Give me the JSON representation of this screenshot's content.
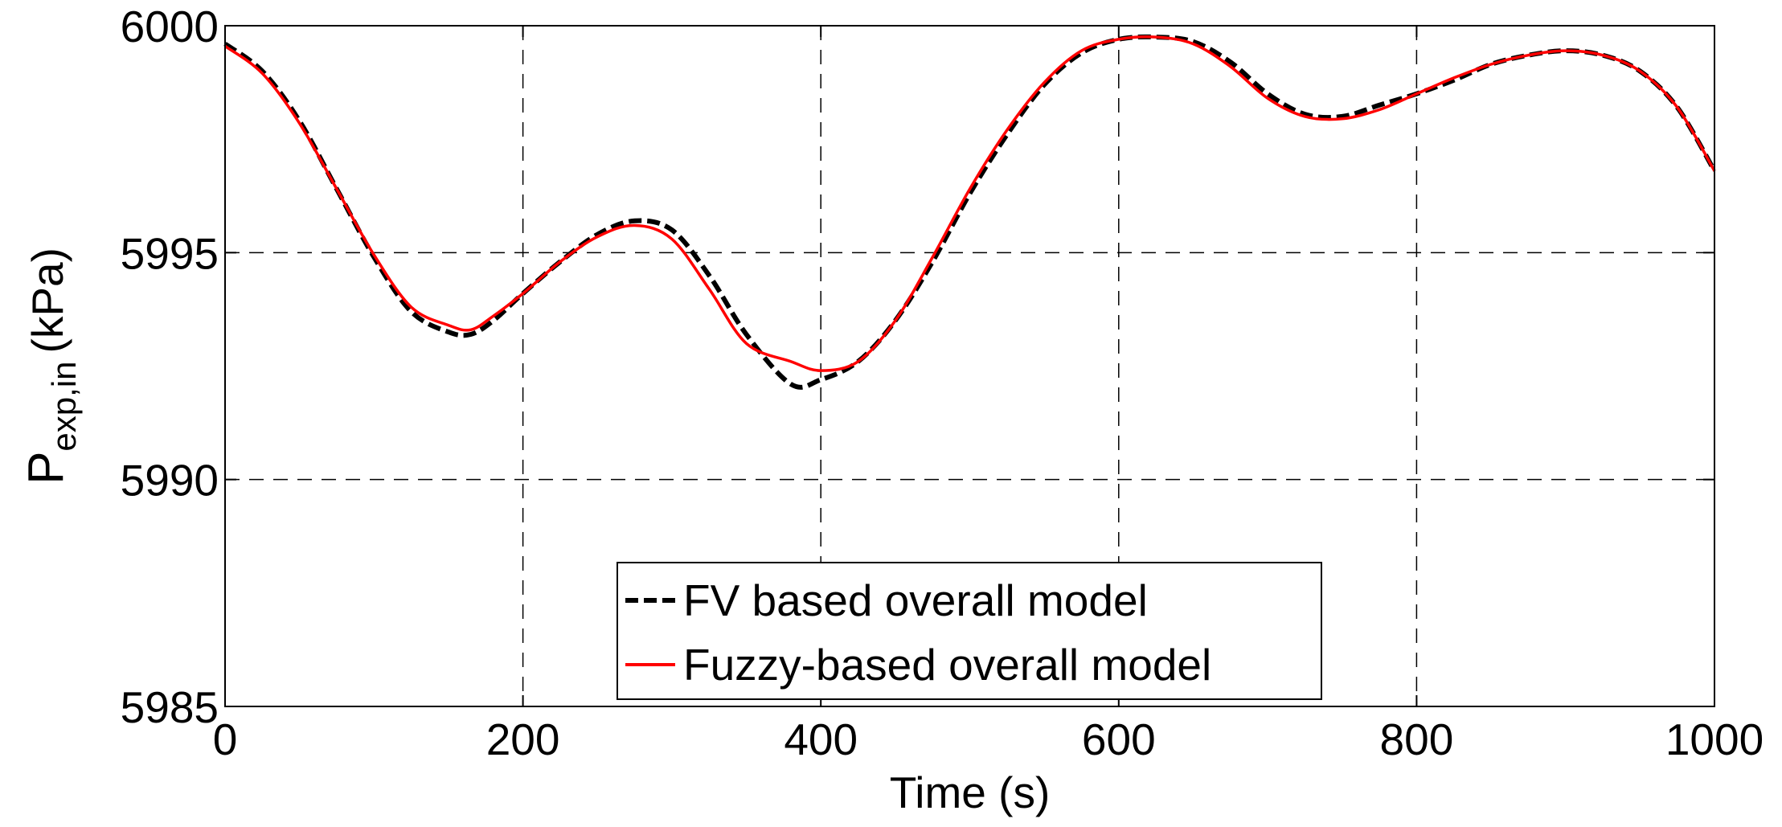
{
  "chart_data": {
    "type": "line",
    "title": "",
    "xlabel": "Time (s)",
    "ylabel": {
      "main": "P",
      "subscript": "exp,in",
      "unit": "(kPa)"
    },
    "xlim": [
      0,
      1000
    ],
    "ylim": [
      5985,
      6000
    ],
    "xticks": [
      0,
      200,
      400,
      600,
      800,
      1000
    ],
    "yticks": [
      5985,
      5990,
      5995,
      6000
    ],
    "grid": true,
    "legend_position": "bottom-center",
    "colors": {
      "fv": "#000000",
      "fuzzy": "#ff0000",
      "grid": "#000000"
    },
    "series": [
      {
        "name": "FV based overall model",
        "style": "dashed",
        "x": [
          0,
          25,
          50,
          75,
          100,
          125,
          150,
          165,
          180,
          200,
          225,
          250,
          275,
          300,
          325,
          350,
          380,
          400,
          425,
          450,
          475,
          500,
          525,
          550,
          575,
          600,
          625,
          650,
          675,
          700,
          725,
          750,
          775,
          800,
          825,
          850,
          875,
          900,
          925,
          950,
          975,
          1000
        ],
        "values": [
          5999.6,
          5999.0,
          5997.9,
          5996.4,
          5994.9,
          5993.7,
          5993.25,
          5993.2,
          5993.5,
          5994.1,
          5994.8,
          5995.4,
          5995.7,
          5995.5,
          5994.5,
          5993.2,
          5992.1,
          5992.2,
          5992.6,
          5993.5,
          5994.8,
          5996.3,
          5997.6,
          5998.7,
          5999.4,
          5999.7,
          5999.75,
          5999.65,
          5999.2,
          5998.5,
          5998.05,
          5998.0,
          5998.25,
          5998.5,
          5998.8,
          5999.15,
          5999.35,
          5999.45,
          5999.35,
          5999.0,
          5998.2,
          5996.8
        ]
      },
      {
        "name": "Fuzzy-based overall model",
        "style": "solid",
        "x": [
          0,
          25,
          50,
          75,
          100,
          125,
          150,
          165,
          180,
          200,
          225,
          250,
          275,
          300,
          325,
          350,
          380,
          400,
          425,
          450,
          475,
          500,
          525,
          550,
          575,
          600,
          625,
          650,
          675,
          700,
          725,
          750,
          775,
          800,
          825,
          850,
          875,
          900,
          925,
          950,
          975,
          1000
        ],
        "values": [
          5999.55,
          5998.95,
          5997.85,
          5996.4,
          5994.95,
          5993.8,
          5993.4,
          5993.3,
          5993.6,
          5994.1,
          5994.8,
          5995.35,
          5995.6,
          5995.3,
          5994.2,
          5993.0,
          5992.6,
          5992.4,
          5992.6,
          5993.5,
          5994.9,
          5996.4,
          5997.7,
          5998.75,
          5999.45,
          5999.7,
          5999.75,
          5999.6,
          5999.1,
          5998.4,
          5998.0,
          5997.95,
          5998.15,
          5998.5,
          5998.85,
          5999.15,
          5999.35,
          5999.45,
          5999.35,
          5999.0,
          5998.2,
          5996.8
        ]
      }
    ]
  }
}
